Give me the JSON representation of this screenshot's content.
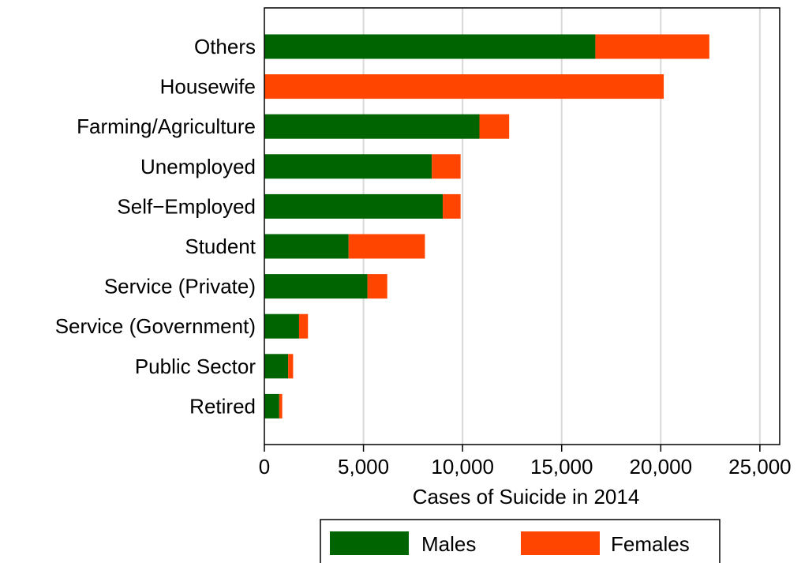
{
  "chart_data": {
    "type": "bar",
    "orientation": "horizontal",
    "stacked": true,
    "categories": [
      "Others",
      "Housewife",
      "Farming/Agriculture",
      "Unemployed",
      "Self−Employed",
      "Student",
      "Service (Private)",
      "Service (Government)",
      "Public Sector",
      "Retired"
    ],
    "series": [
      {
        "name": "Males",
        "color": "#006400",
        "values": [
          16700,
          0,
          10850,
          8450,
          9000,
          4250,
          5200,
          1750,
          1200,
          750
        ]
      },
      {
        "name": "Females",
        "color": "#FF4500",
        "values": [
          5750,
          20150,
          1500,
          1450,
          900,
          3850,
          1000,
          450,
          250,
          150
        ]
      }
    ],
    "xlabel": "Cases of Suicide in 2014",
    "ylabel": "",
    "xlim": [
      0,
      26000
    ],
    "xticks": [
      0,
      5000,
      10000,
      15000,
      20000,
      25000
    ],
    "xtick_labels": [
      "0",
      "5,000",
      "10,000",
      "15,000",
      "20,000",
      "25,000"
    ],
    "grid": "vertical",
    "legend_position": "bottom"
  }
}
